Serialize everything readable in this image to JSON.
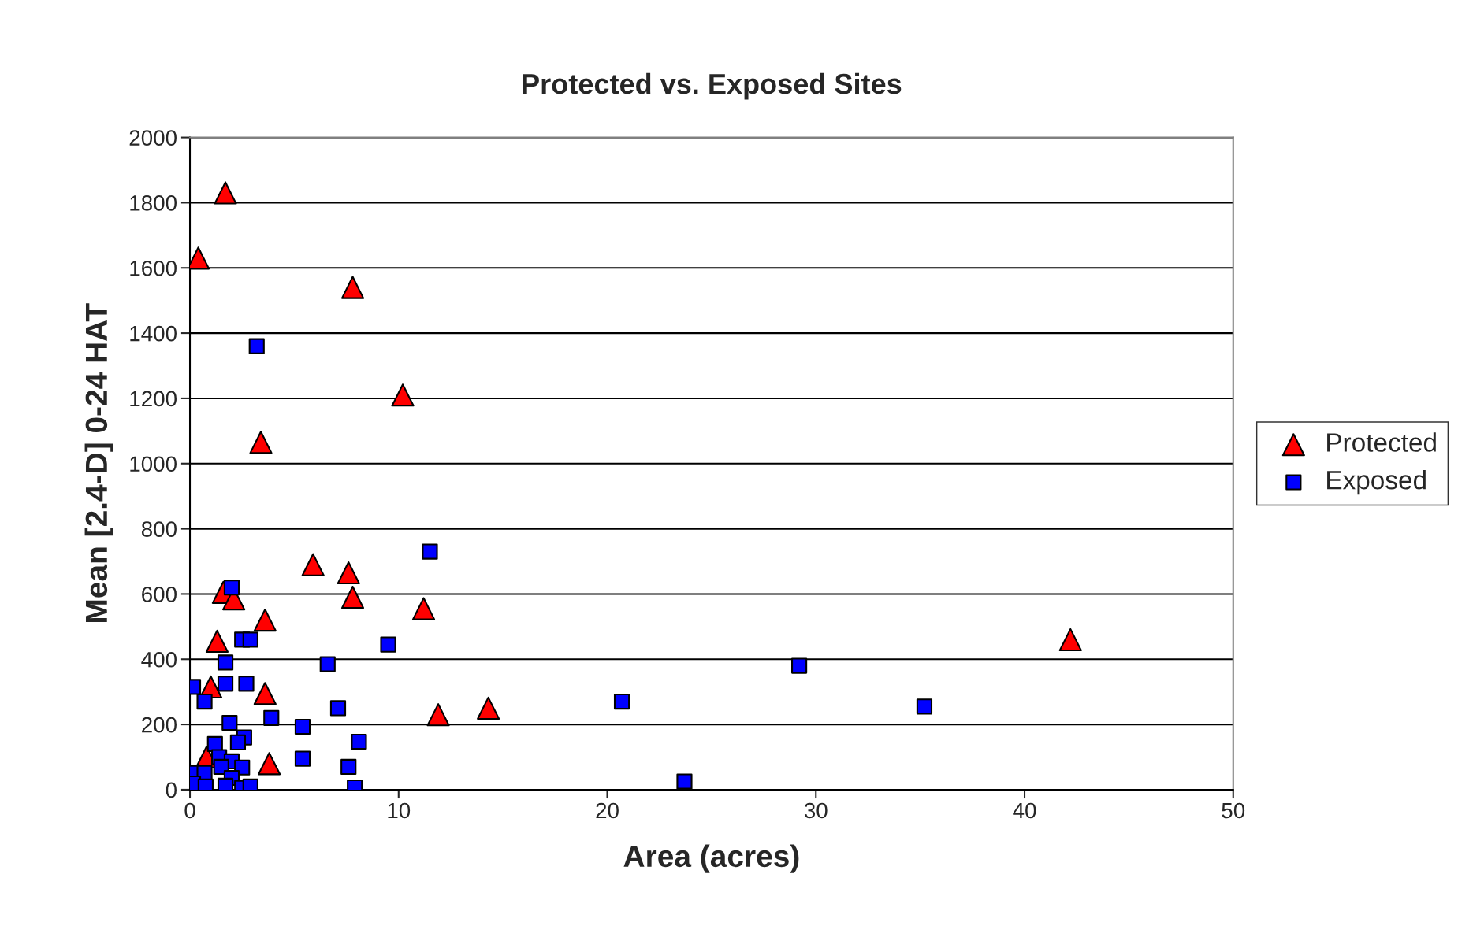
{
  "chart_data": {
    "type": "scatter",
    "title": "Protected vs. Exposed Sites",
    "xlabel": "Area (acres)",
    "ylabel": "Mean [2.4-D] 0-24 HAT",
    "xlim": [
      0,
      50
    ],
    "xticks": [
      0,
      10,
      20,
      30,
      40,
      50
    ],
    "ylim": [
      0,
      2000
    ],
    "yticks": [
      0,
      200,
      400,
      600,
      800,
      1000,
      1200,
      1400,
      1600,
      1800,
      2000
    ],
    "grid": "y",
    "legend": "right",
    "series": [
      {
        "name": "Protected",
        "color": "#ff0000",
        "marker": "triangle",
        "x": [
          1.7,
          0.4,
          7.8,
          10.2,
          3.4,
          5.9,
          7.6,
          7.8,
          1.6,
          2.1,
          11.2,
          3.6,
          1.3,
          1.0,
          3.6,
          11.9,
          14.3,
          42.2,
          0.8,
          3.8
        ],
        "values": [
          1830,
          1630,
          1540,
          1210,
          1065,
          690,
          665,
          590,
          605,
          585,
          555,
          520,
          455,
          315,
          295,
          230,
          250,
          460,
          100,
          80
        ]
      },
      {
        "name": "Exposed",
        "color": "#0000ff",
        "marker": "square",
        "x": [
          3.2,
          11.5,
          2.0,
          2.5,
          2.9,
          9.5,
          1.7,
          6.6,
          0.15,
          1.7,
          2.7,
          0.7,
          7.1,
          3.9,
          1.9,
          5.4,
          2.6,
          1.2,
          2.3,
          8.1,
          5.4,
          1.4,
          2.0,
          1.5,
          2.5,
          7.6,
          0.1,
          0.7,
          2.0,
          0.15,
          0.75,
          1.7,
          2.5,
          2.9,
          7.9,
          20.7,
          23.7,
          29.2,
          35.2
        ],
        "values": [
          1360,
          730,
          620,
          460,
          460,
          445,
          390,
          385,
          315,
          325,
          325,
          270,
          250,
          220,
          205,
          193,
          160,
          140,
          145,
          147,
          95,
          100,
          87,
          70,
          68,
          70,
          51,
          51,
          36,
          19,
          10,
          12,
          5,
          10,
          7,
          270,
          25,
          380,
          255
        ]
      }
    ]
  }
}
